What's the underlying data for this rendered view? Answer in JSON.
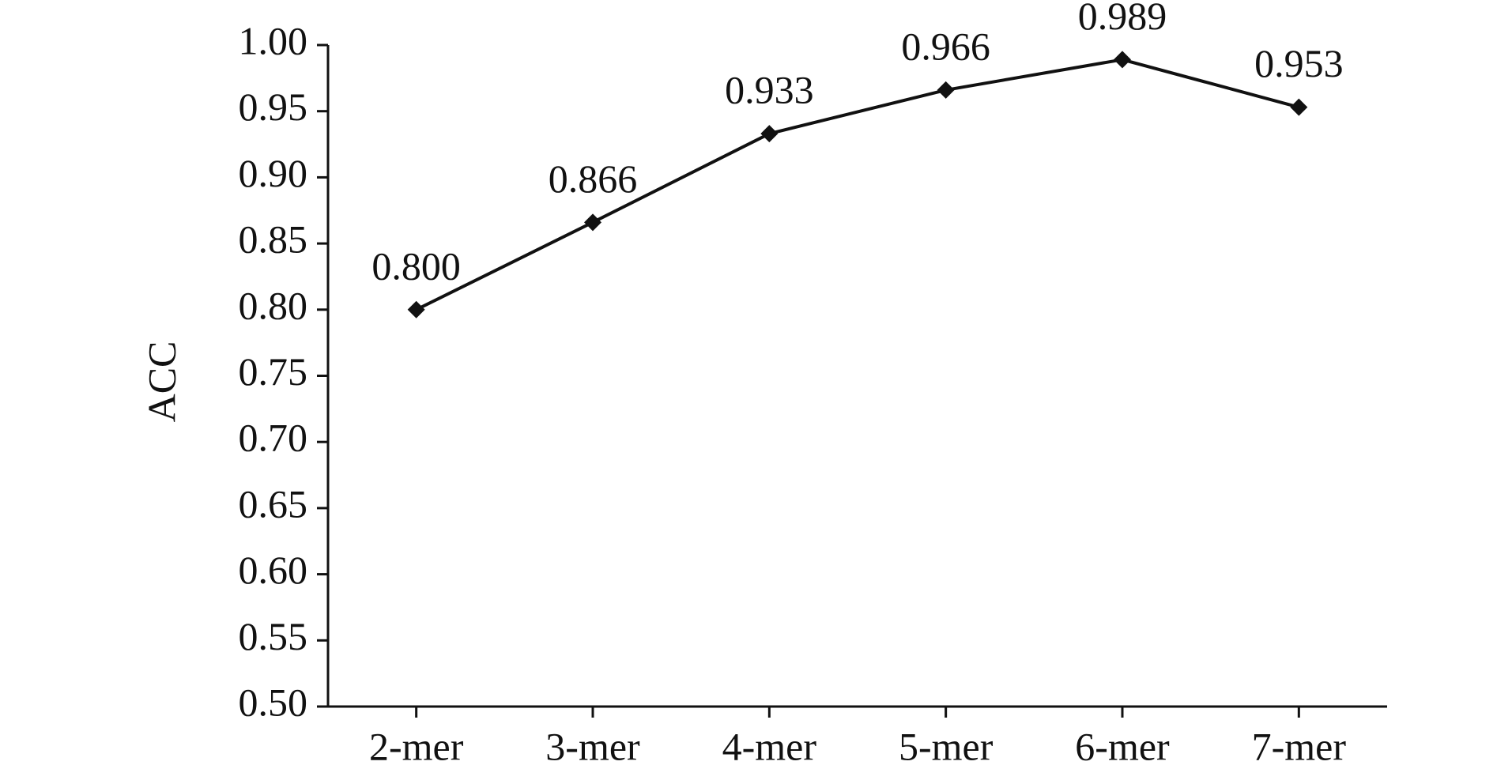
{
  "chart_data": {
    "type": "line",
    "y_label": "ACC",
    "categories": [
      "2-mer",
      "3-mer",
      "4-mer",
      "5-mer",
      "6-mer",
      "7-mer"
    ],
    "series": [
      {
        "color": "#111111",
        "values": [
          0.8,
          0.866,
          0.933,
          0.966,
          0.989,
          0.953
        ],
        "value_labels": [
          "0.800",
          "0.866",
          "0.933",
          "0.966",
          "0.989",
          "0.953"
        ]
      }
    ],
    "ylim": [
      0.5,
      1.0
    ],
    "yticks": [
      {
        "value": 0.5,
        "label": "0.50"
      },
      0.55,
      {
        "value": 0.6,
        "label": "0.60"
      },
      0.65,
      {
        "value": 0.7,
        "label": "0.70"
      },
      0.75,
      {
        "value": 0.8,
        "label": "0.80"
      },
      0.85,
      {
        "value": 0.9,
        "label": "0.90"
      },
      0.95,
      {
        "value": 1.0,
        "label": "1.00"
      }
    ],
    "grid": false
  }
}
